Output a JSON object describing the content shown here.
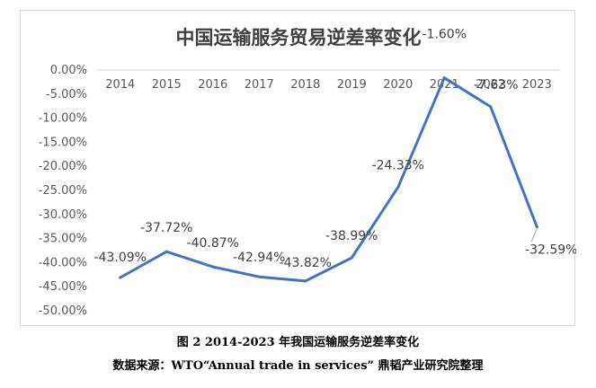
{
  "chart_data": {
    "type": "line",
    "title": "中国运输服务贸易逆差率变化",
    "categories": [
      "2014",
      "2015",
      "2016",
      "2017",
      "2018",
      "2019",
      "2020",
      "2021",
      "2022",
      "2023"
    ],
    "series": [
      {
        "values": [
          -43.09,
          -37.72,
          -40.87,
          -42.94,
          -43.82,
          -38.99,
          -24.33,
          -1.6,
          -7.63,
          -32.59
        ]
      }
    ],
    "value_labels": [
      "-43.09%",
      "-37.72%",
      "-40.87%",
      "-42.94%",
      "-43.82%",
      "-38.99%",
      "-24.33%",
      "-1.60%",
      "-7.63%",
      "-32.59%"
    ],
    "yticks": [
      "0.00%",
      "-5.00%",
      "-10.00%",
      "-15.00%",
      "-20.00%",
      "-25.00%",
      "-30.00%",
      "-35.00%",
      "-40.00%",
      "-45.00%",
      "-50.00%"
    ],
    "ylim": [
      -50,
      0
    ],
    "xaxis_position": "top",
    "grid": false,
    "legend": "none",
    "line_color": "#4472C4"
  },
  "caption": "图 2 2014-2023 年我国运输服务逆差率变化",
  "source": "数据来源：WTO“Annual trade in services” 鼎韬产业研究院整理"
}
